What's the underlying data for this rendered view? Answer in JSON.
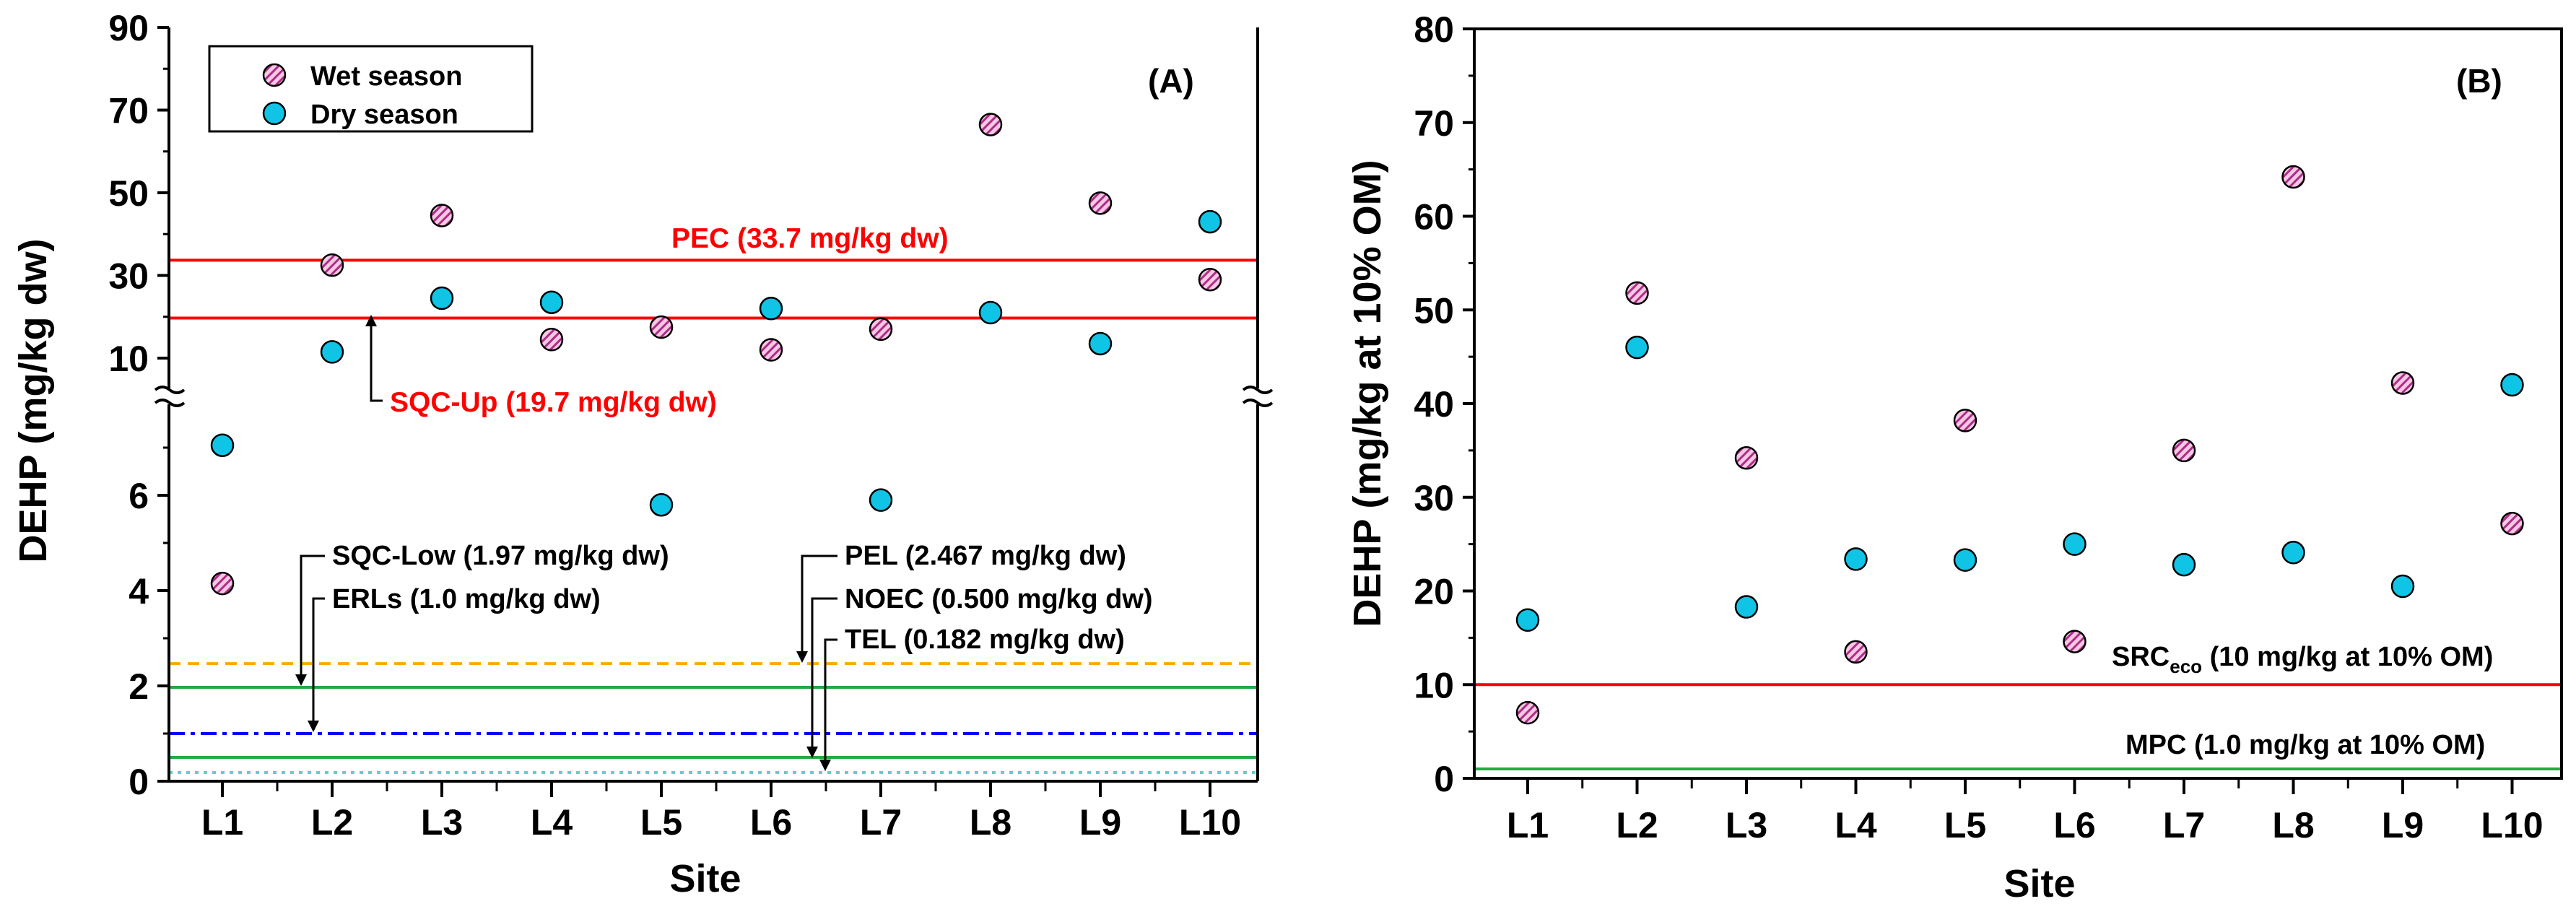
{
  "chart_data": [
    {
      "type": "scatter",
      "panel_label": "(A)",
      "xlabel": "Site",
      "ylabel": "DEHP (mg/kg dw)",
      "categories": [
        "L1",
        "L2",
        "L3",
        "L4",
        "L5",
        "L6",
        "L7",
        "L8",
        "L9",
        "L10"
      ],
      "broken_axis": true,
      "upper_ylim": [
        8,
        90
      ],
      "upper_yticks": [
        "10",
        "30",
        "50",
        "70",
        "90"
      ],
      "lower_ylim": [
        0,
        8
      ],
      "lower_yticks": [
        "0",
        "2",
        "4",
        "6"
      ],
      "legend": {
        "position": "top-left",
        "entries": [
          "Wet season",
          "Dry season"
        ]
      },
      "series": [
        {
          "name": "Wet season",
          "values": [
            4.15,
            32.5,
            44.5,
            14.5,
            17.5,
            12.0,
            17.0,
            66.5,
            47.5,
            29.0
          ]
        },
        {
          "name": "Dry season",
          "values": [
            7.05,
            11.5,
            24.5,
            23.5,
            5.8,
            22.0,
            5.9,
            21.0,
            13.5,
            43.0
          ]
        }
      ],
      "reference_lines": [
        {
          "id": "pec",
          "value": 33.7,
          "style": "solid",
          "color": "#ff0000",
          "label": "PEC  (33.7 mg/kg dw)"
        },
        {
          "id": "sqc_up",
          "value": 19.7,
          "style": "solid",
          "color": "#ff0000",
          "label": "SQC-Up (19.7 mg/kg dw)"
        },
        {
          "id": "pel",
          "value": 2.467,
          "style": "dashed",
          "color": "#ffaa00",
          "label": "PEL (2.467 mg/kg dw)"
        },
        {
          "id": "sqc_low",
          "value": 1.97,
          "style": "solid",
          "color": "#22aa44",
          "label": "SQC-Low (1.97 mg/kg dw)"
        },
        {
          "id": "erls",
          "value": 1.0,
          "style": "dashdot",
          "color": "#0000ff",
          "label": "ERLs (1.0 mg/kg dw)"
        },
        {
          "id": "noec",
          "value": 0.5,
          "style": "solid",
          "color": "#22aa44",
          "label": "NOEC (0.500 mg/kg dw)"
        },
        {
          "id": "tel",
          "value": 0.182,
          "style": "dotted",
          "color": "#66cccc",
          "label": "TEL (0.182 mg/kg dw)"
        }
      ]
    },
    {
      "type": "scatter",
      "panel_label": "(B)",
      "xlabel": "Site",
      "ylabel": "DEHP (mg/kg at 10% OM)",
      "categories": [
        "L1",
        "L2",
        "L3",
        "L4",
        "L5",
        "L6",
        "L7",
        "L8",
        "L9",
        "L10"
      ],
      "ylim": [
        0,
        80
      ],
      "yticks": [
        "0",
        "10",
        "20",
        "30",
        "40",
        "50",
        "60",
        "70",
        "80"
      ],
      "series": [
        {
          "name": "Wet season",
          "values": [
            7.0,
            51.8,
            34.2,
            13.5,
            38.2,
            14.6,
            35.0,
            64.2,
            42.2,
            27.2
          ]
        },
        {
          "name": "Dry season",
          "values": [
            16.9,
            46.0,
            18.3,
            23.4,
            23.3,
            25.0,
            22.8,
            24.1,
            20.5,
            42.0
          ]
        }
      ],
      "reference_lines": [
        {
          "id": "src_eco",
          "value": 10,
          "style": "solid",
          "color": "#ff0000",
          "label_main": "SRC",
          "label_sub": "eco",
          "label_rest": " (10 mg/kg at 10% OM)"
        },
        {
          "id": "mpc",
          "value": 1.0,
          "style": "solid",
          "color": "#22aa44",
          "label": "MPC (1.0 mg/kg at 10% OM)"
        }
      ]
    }
  ]
}
